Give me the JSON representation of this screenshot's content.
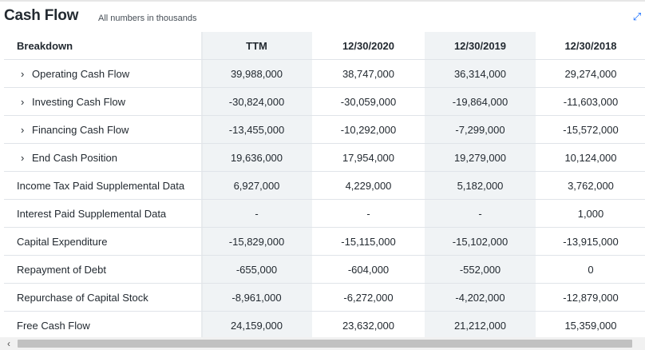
{
  "header": {
    "title": "Cash Flow",
    "subtitle": "All numbers in thousands",
    "expand_icon": "expand-icon"
  },
  "columns": [
    "Breakdown",
    "TTM",
    "12/30/2020",
    "12/30/2019",
    "12/30/2018"
  ],
  "rows": [
    {
      "label": "Operating Cash Flow",
      "expandable": true,
      "values": [
        "39,988,000",
        "38,747,000",
        "36,314,000",
        "29,274,000"
      ]
    },
    {
      "label": "Investing Cash Flow",
      "expandable": true,
      "values": [
        "-30,824,000",
        "-30,059,000",
        "-19,864,000",
        "-11,603,000"
      ]
    },
    {
      "label": "Financing Cash Flow",
      "expandable": true,
      "values": [
        "-13,455,000",
        "-10,292,000",
        "-7,299,000",
        "-15,572,000"
      ]
    },
    {
      "label": "End Cash Position",
      "expandable": true,
      "values": [
        "19,636,000",
        "17,954,000",
        "19,279,000",
        "10,124,000"
      ]
    },
    {
      "label": "Income Tax Paid Supplemental Data",
      "expandable": false,
      "values": [
        "6,927,000",
        "4,229,000",
        "5,182,000",
        "3,762,000"
      ]
    },
    {
      "label": "Interest Paid Supplemental Data",
      "expandable": false,
      "values": [
        "-",
        "-",
        "-",
        "1,000"
      ]
    },
    {
      "label": "Capital Expenditure",
      "expandable": false,
      "values": [
        "-15,829,000",
        "-15,115,000",
        "-15,102,000",
        "-13,915,000"
      ]
    },
    {
      "label": "Repayment of Debt",
      "expandable": false,
      "values": [
        "-655,000",
        "-604,000",
        "-552,000",
        "0"
      ]
    },
    {
      "label": "Repurchase of Capital Stock",
      "expandable": false,
      "values": [
        "-8,961,000",
        "-6,272,000",
        "-4,202,000",
        "-12,879,000"
      ]
    },
    {
      "label": "Free Cash Flow",
      "expandable": false,
      "values": [
        "24,159,000",
        "23,632,000",
        "21,212,000",
        "15,359,000"
      ]
    }
  ],
  "scrollbar": {
    "left_arrow": "‹"
  }
}
